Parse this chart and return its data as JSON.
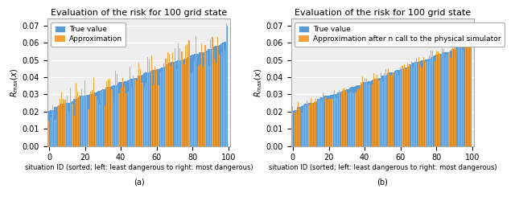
{
  "title": "Evaluation of the risk for 100 grid state",
  "xlabel": "situation ID (sorted; left: least dangerous to right: most dangerous)",
  "ylabel": "$R_{max}(x)$",
  "legend_left": [
    "True value",
    "Approximation"
  ],
  "legend_right": [
    "True value",
    "Approximation after n call to the physical simulator"
  ],
  "label_a": "(a)",
  "label_b": "(b)",
  "ylim": [
    0.0,
    0.074
  ],
  "yticks": [
    0.0,
    0.01,
    0.02,
    0.03,
    0.04,
    0.05,
    0.06,
    0.07
  ],
  "xticks": [
    0,
    20,
    40,
    60,
    80,
    100
  ],
  "n_bars": 100,
  "blue_color": "#5b9bd5",
  "orange_color": "#f5a23a",
  "background_color": "#eeeeee",
  "title_fontsize": 8,
  "axis_fontsize": 6,
  "legend_fontsize": 6.5,
  "tick_fontsize": 7
}
